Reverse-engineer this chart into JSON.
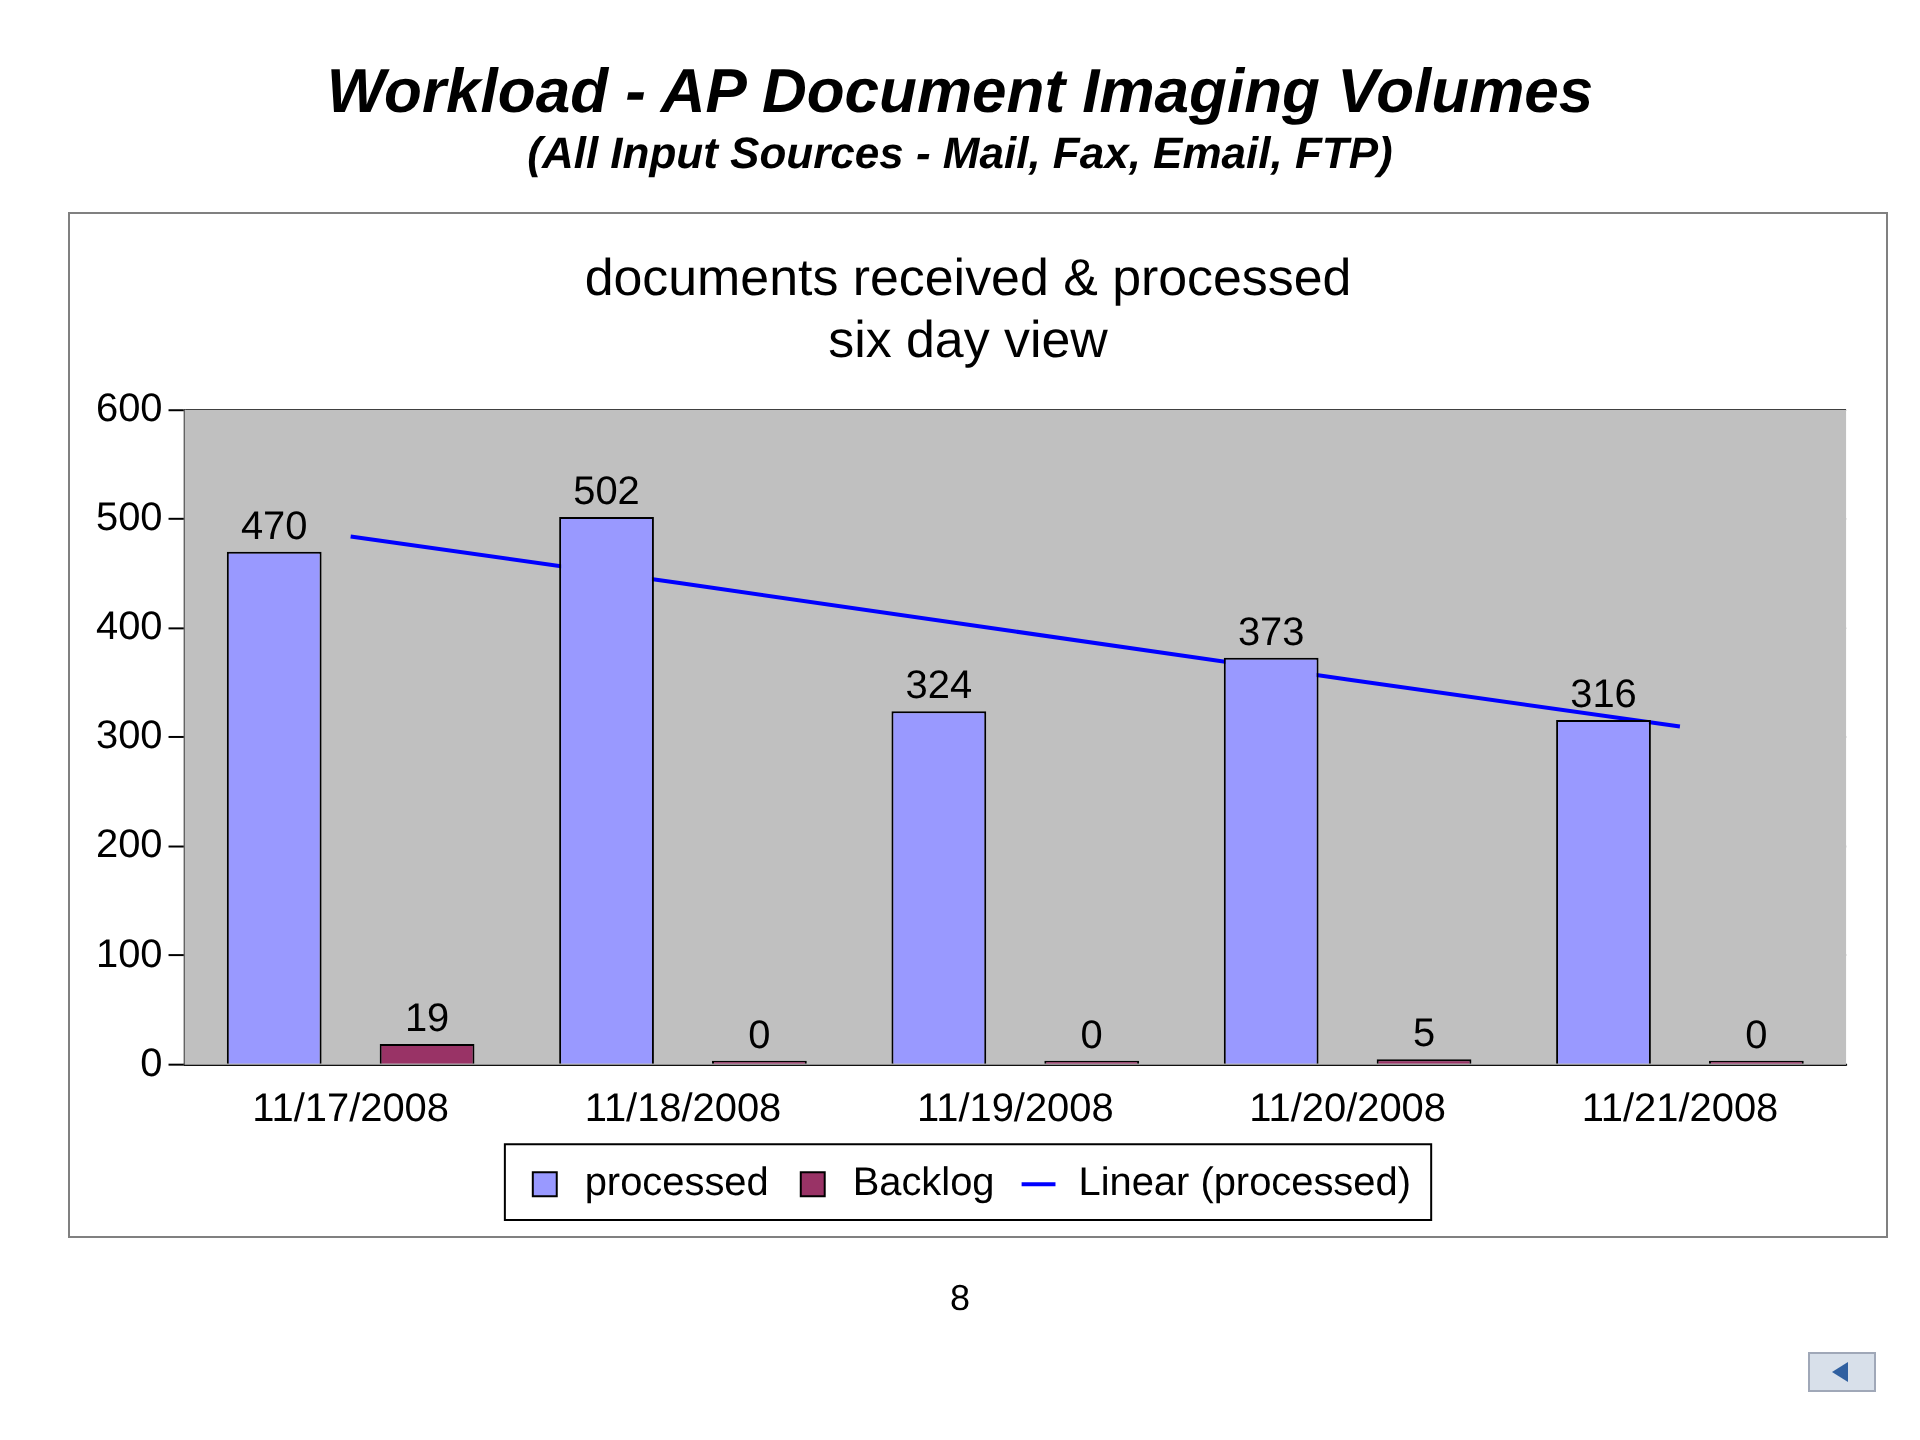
{
  "chart_data": {
    "type": "bar",
    "title": "Workload - AP Document Imaging Volumes",
    "subtitle": "(All Input Sources - Mail, Fax, Email, FTP)",
    "annotations": [
      "documents received & processed",
      "six day view",
      "8"
    ],
    "categories": [
      "11/17/2008",
      "11/18/2008",
      "11/19/2008",
      "11/20/2008",
      "11/21/2008"
    ],
    "series": [
      {
        "name": "processed",
        "color": "#9999ff",
        "values": [
          470,
          502,
          324,
          373,
          316
        ],
        "value_labels": [
          "470",
          "502",
          "324",
          "373",
          "316"
        ]
      },
      {
        "name": "Backlog",
        "color": "#993366",
        "values": [
          19,
          0,
          0,
          5,
          0
        ],
        "value_labels": [
          "19",
          "0",
          "0",
          "5",
          "0"
        ]
      },
      {
        "name": "Linear (processed)",
        "type": "line",
        "color": "#0000ff",
        "values": [
          484,
          441,
          397,
          353,
          310
        ]
      }
    ],
    "ylim": [
      0,
      600
    ],
    "yticks": [
      0,
      100,
      200,
      300,
      400,
      500,
      600
    ],
    "grid": "y",
    "legend": "bottom",
    "marker": "none",
    "line_style": "solid"
  }
}
